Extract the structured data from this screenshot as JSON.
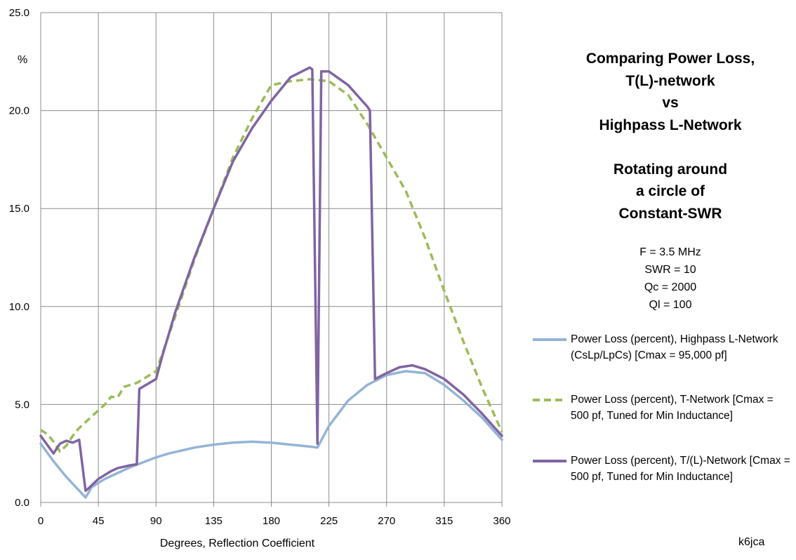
{
  "chart_data": {
    "type": "line",
    "title_lines": [
      "Comparing Power Loss,",
      "T(L)-network",
      "vs",
      "Highpass L-Network",
      "",
      "Rotating around",
      "a circle of",
      "Constant-SWR"
    ],
    "parameters": [
      "F = 3.5 MHz",
      "SWR = 10",
      "Qc = 2000",
      "Ql = 100"
    ],
    "xlabel": "Degrees, Reflection Coefficient",
    "ylabel": "%",
    "xlim": [
      0,
      360
    ],
    "ylim": [
      0,
      25
    ],
    "x_ticks": [
      0,
      45,
      90,
      135,
      180,
      225,
      270,
      315,
      360
    ],
    "x_tick_labels": [
      "0",
      "45",
      "90",
      "135",
      "180",
      "225",
      "270",
      "315",
      "360"
    ],
    "y_ticks": [
      0,
      5,
      10,
      15,
      20,
      25
    ],
    "y_tick_labels": [
      "0.0",
      "5.0",
      "10.0",
      "15.0",
      "20.0",
      "25.0"
    ],
    "grid": true,
    "series": [
      {
        "name": "Power Loss (percent), Highpass L-Network (CsLp/LpCs)  [Cmax = 95,000 pf]",
        "color": "#95b3d7",
        "dash": "solid",
        "x": [
          0,
          10,
          20,
          30,
          35,
          40,
          50,
          60,
          70,
          80,
          90,
          100,
          110,
          120,
          135,
          150,
          165,
          180,
          195,
          210,
          216,
          225,
          240,
          255,
          270,
          285,
          300,
          315,
          330,
          345,
          360
        ],
        "y": [
          3.0,
          2.1,
          1.3,
          0.6,
          0.25,
          0.8,
          1.2,
          1.5,
          1.8,
          2.05,
          2.3,
          2.5,
          2.65,
          2.8,
          2.95,
          3.05,
          3.1,
          3.05,
          2.95,
          2.85,
          2.8,
          3.9,
          5.2,
          6.0,
          6.5,
          6.7,
          6.6,
          6.0,
          5.2,
          4.3,
          3.2
        ]
      },
      {
        "name": "Power Loss (percent), T-Network [Cmax = 500 pf, Tuned for Min Inductance]",
        "color": "#9bbb59",
        "dash": "dashed",
        "x": [
          0,
          5,
          10,
          15,
          20,
          25,
          30,
          40,
          50,
          55,
          60,
          65,
          70,
          75,
          80,
          90,
          95,
          105,
          120,
          135,
          150,
          165,
          180,
          195,
          210,
          225,
          240,
          255,
          270,
          285,
          300,
          315,
          330,
          345,
          360
        ],
        "y": [
          3.7,
          3.5,
          3.1,
          2.6,
          2.9,
          3.4,
          3.8,
          4.4,
          5.0,
          5.4,
          5.35,
          5.9,
          6.0,
          6.1,
          6.3,
          6.7,
          7.6,
          9.5,
          12.4,
          15.0,
          17.6,
          19.6,
          21.3,
          21.5,
          21.6,
          21.5,
          20.8,
          19.3,
          17.6,
          15.9,
          13.5,
          10.8,
          8.2,
          5.8,
          3.6
        ]
      },
      {
        "name": "Power Loss (percent), T/(L)-Network [Cmax = 500 pf, Tuned for Min Inductance]",
        "color": "#8064a2",
        "dash": "solid",
        "x": [
          0,
          10,
          15,
          20,
          25,
          30,
          35,
          37,
          45,
          55,
          60,
          70,
          75,
          77,
          90,
          95,
          105,
          120,
          135,
          150,
          165,
          180,
          195,
          210,
          212,
          216,
          219,
          225,
          240,
          255,
          257,
          261,
          270,
          280,
          290,
          300,
          315,
          330,
          345,
          360
        ],
        "y": [
          3.4,
          2.5,
          3.0,
          3.15,
          3.05,
          3.2,
          0.6,
          0.7,
          1.2,
          1.6,
          1.75,
          1.9,
          1.95,
          5.8,
          6.3,
          7.5,
          9.7,
          12.5,
          15.0,
          17.4,
          19.1,
          20.5,
          21.7,
          22.2,
          22.1,
          3.0,
          22.0,
          22.0,
          21.3,
          20.2,
          20.0,
          6.3,
          6.6,
          6.9,
          7.0,
          6.8,
          6.3,
          5.5,
          4.5,
          3.4
        ]
      }
    ]
  },
  "credit": "k6jca"
}
